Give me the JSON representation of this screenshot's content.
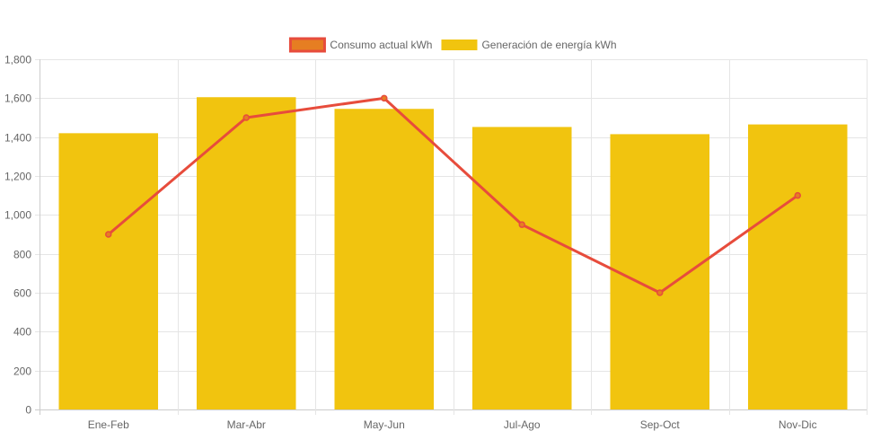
{
  "chart_data": {
    "type": "bar",
    "categories": [
      "Ene-Feb",
      "Mar-Abr",
      "May-Jun",
      "Jul-Ago",
      "Sep-Oct",
      "Nov-Dic"
    ],
    "series": [
      {
        "name": "Generación de energía kWh",
        "type": "bar",
        "values": [
          1420,
          1605,
          1545,
          1452,
          1415,
          1465
        ],
        "color": "#f1c40f"
      },
      {
        "name": "Consumo actual kWh",
        "type": "line",
        "values": [
          900,
          1500,
          1600,
          950,
          600,
          1100
        ],
        "color": "#e74c3c",
        "legend_fill": "#e67e22"
      }
    ],
    "legend_order": [
      "Consumo actual kWh",
      "Generación de energía kWh"
    ],
    "legend_position": "top",
    "ylim": [
      0,
      1800
    ],
    "yticks": [
      0,
      200,
      400,
      600,
      800,
      1000,
      1200,
      1400,
      1600,
      1800
    ],
    "ytick_labels": [
      "0",
      "200",
      "400",
      "600",
      "800",
      "1,000",
      "1,200",
      "1,400",
      "1,600",
      "1,800"
    ],
    "grid": true,
    "gridColor": "#e5e5e5",
    "axisColor": "#cccccc"
  }
}
